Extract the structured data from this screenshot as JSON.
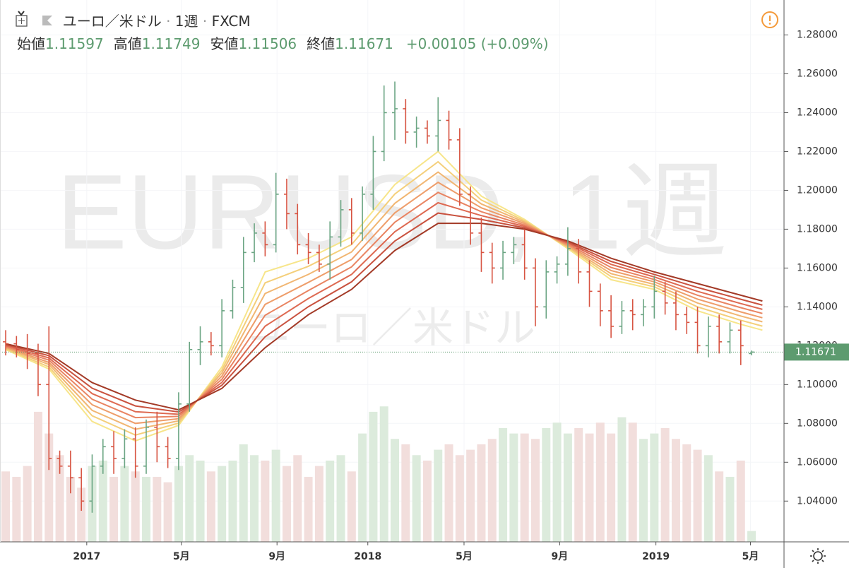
{
  "header": {
    "symbol": "ユーロ／米ドル",
    "interval": "1週",
    "source": "FXCM",
    "ohlc": [
      {
        "label": "始値",
        "value": "1.11597"
      },
      {
        "label": "高値",
        "value": "1.11749"
      },
      {
        "label": "安値",
        "value": "1.11506"
      },
      {
        "label": "終値",
        "value": "1.11671"
      }
    ],
    "change": "+0.00105 (+0.09%)"
  },
  "chart_data": {
    "type": "ohlc",
    "watermark": {
      "main": "EURUSD, 1週",
      "sub": "ユーロ／米ドル"
    },
    "up_color": "#6ba583",
    "down_color": "#d75442",
    "volume_up_color": "#dcebdc",
    "volume_down_color": "#f2dedc",
    "xlim": [
      -1.05,
      144
    ],
    "xticks": [
      {
        "value": 15,
        "label": "2017"
      },
      {
        "value": 32.5,
        "label": "5月"
      },
      {
        "value": 50.2,
        "label": "9月"
      },
      {
        "value": 67,
        "label": "2018"
      },
      {
        "value": 84.8,
        "label": "5月"
      },
      {
        "value": 102.5,
        "label": "9月"
      },
      {
        "value": 120.3,
        "label": "2019"
      },
      {
        "value": 137.8,
        "label": "5月"
      }
    ],
    "ylim": [
      1.019,
      1.298
    ],
    "yticks": [
      {
        "value": 1.04,
        "label": "1.04000"
      },
      {
        "value": 1.06,
        "label": "1.06000"
      },
      {
        "value": 1.08,
        "label": "1.08000"
      },
      {
        "value": 1.1,
        "label": "1.10000"
      },
      {
        "value": 1.12,
        "label": "1.12000"
      },
      {
        "value": 1.14,
        "label": "1.14000"
      },
      {
        "value": 1.16,
        "label": "1.16000"
      },
      {
        "value": 1.18,
        "label": "1.18000"
      },
      {
        "value": 1.2,
        "label": "1.20000"
      },
      {
        "value": 1.22,
        "label": "1.22000"
      },
      {
        "value": 1.24,
        "label": "1.24000"
      },
      {
        "value": 1.26,
        "label": "1.26000"
      },
      {
        "value": 1.28,
        "label": "1.28000"
      }
    ],
    "last_price": {
      "value": 1.11671,
      "label": "1.11671"
    },
    "vlim": [
      0,
      100
    ],
    "x": [
      0,
      2,
      4,
      6,
      8,
      10,
      12,
      14,
      16,
      18,
      20,
      22,
      24,
      26,
      28,
      30,
      32,
      34,
      36,
      38,
      40,
      42,
      44,
      46,
      48,
      50,
      52,
      54,
      56,
      58,
      60,
      62,
      64,
      66,
      68,
      70,
      72,
      74,
      76,
      78,
      80,
      82,
      84,
      86,
      88,
      90,
      92,
      94,
      96,
      98,
      100,
      102,
      104,
      106,
      108,
      110,
      112,
      114,
      116,
      118,
      120,
      122,
      124,
      126,
      128,
      130,
      132,
      134,
      136,
      138
    ],
    "open": [
      1.122,
      1.121,
      1.118,
      1.116,
      1.1,
      1.062,
      1.058,
      1.052,
      1.04,
      1.058,
      1.068,
      1.062,
      1.072,
      1.058,
      1.078,
      1.068,
      1.062,
      1.09,
      1.118,
      1.122,
      1.12,
      1.138,
      1.15,
      1.168,
      1.178,
      1.172,
      1.198,
      1.188,
      1.172,
      1.168,
      1.162,
      1.176,
      1.19,
      1.178,
      1.198,
      1.22,
      1.24,
      1.242,
      1.23,
      1.232,
      1.228,
      1.236,
      1.226,
      1.198,
      1.178,
      1.168,
      1.16,
      1.168,
      1.172,
      1.16,
      1.14,
      1.158,
      1.162,
      1.17,
      1.158,
      1.148,
      1.138,
      1.13,
      1.138,
      1.136,
      1.14,
      1.148,
      1.142,
      1.136,
      1.132,
      1.12,
      1.13,
      1.122,
      1.128,
      1.11597
    ],
    "high": [
      1.128,
      1.125,
      1.126,
      1.121,
      1.13,
      1.066,
      1.066,
      1.057,
      1.064,
      1.072,
      1.076,
      1.077,
      1.078,
      1.082,
      1.086,
      1.073,
      1.096,
      1.122,
      1.13,
      1.127,
      1.144,
      1.154,
      1.176,
      1.183,
      1.184,
      1.209,
      1.206,
      1.193,
      1.178,
      1.172,
      1.184,
      1.195,
      1.196,
      1.202,
      1.228,
      1.254,
      1.256,
      1.247,
      1.238,
      1.236,
      1.248,
      1.241,
      1.232,
      1.202,
      1.186,
      1.173,
      1.174,
      1.176,
      1.18,
      1.165,
      1.164,
      1.166,
      1.181,
      1.175,
      1.164,
      1.152,
      1.146,
      1.143,
      1.144,
      1.144,
      1.156,
      1.153,
      1.148,
      1.14,
      1.14,
      1.135,
      1.136,
      1.132,
      1.133,
      1.11749
    ],
    "low": [
      1.115,
      1.114,
      1.108,
      1.094,
      1.056,
      1.054,
      1.044,
      1.035,
      1.034,
      1.054,
      1.054,
      1.057,
      1.052,
      1.054,
      1.06,
      1.057,
      1.056,
      1.086,
      1.11,
      1.115,
      1.114,
      1.134,
      1.142,
      1.163,
      1.166,
      1.168,
      1.18,
      1.167,
      1.162,
      1.158,
      1.154,
      1.171,
      1.172,
      1.174,
      1.19,
      1.215,
      1.226,
      1.224,
      1.222,
      1.224,
      1.22,
      1.221,
      1.192,
      1.172,
      1.158,
      1.152,
      1.154,
      1.162,
      1.154,
      1.13,
      1.134,
      1.152,
      1.156,
      1.152,
      1.14,
      1.13,
      1.124,
      1.126,
      1.128,
      1.13,
      1.134,
      1.136,
      1.128,
      1.126,
      1.116,
      1.114,
      1.116,
      1.116,
      1.11,
      1.11506
    ],
    "close": [
      1.121,
      1.118,
      1.116,
      1.1,
      1.062,
      1.058,
      1.052,
      1.04,
      1.058,
      1.068,
      1.062,
      1.072,
      1.058,
      1.078,
      1.068,
      1.062,
      1.09,
      1.118,
      1.122,
      1.12,
      1.138,
      1.15,
      1.168,
      1.178,
      1.172,
      1.198,
      1.188,
      1.172,
      1.168,
      1.162,
      1.176,
      1.19,
      1.178,
      1.198,
      1.22,
      1.24,
      1.242,
      1.23,
      1.232,
      1.228,
      1.236,
      1.226,
      1.198,
      1.178,
      1.168,
      1.16,
      1.168,
      1.172,
      1.16,
      1.14,
      1.158,
      1.162,
      1.17,
      1.158,
      1.148,
      1.138,
      1.13,
      1.138,
      1.136,
      1.14,
      1.148,
      1.142,
      1.136,
      1.132,
      1.12,
      1.13,
      1.122,
      1.128,
      1.12,
      1.11671
    ],
    "volume": [
      13,
      12,
      14,
      24,
      20,
      16,
      12,
      10,
      14,
      15,
      12,
      14,
      13,
      12,
      12,
      11,
      14,
      16,
      15,
      13,
      14,
      15,
      18,
      16,
      15,
      17,
      14,
      16,
      12,
      14,
      15,
      16,
      13,
      20,
      24,
      25,
      19,
      18,
      16,
      15,
      17,
      18,
      16,
      17,
      18,
      19,
      21,
      20,
      20,
      19,
      21,
      22,
      20,
      21,
      20,
      22,
      20,
      23,
      22,
      19,
      20,
      21,
      19,
      18,
      17,
      16,
      13,
      12,
      15,
      2
    ],
    "ma_x": [
      0,
      8,
      16,
      24,
      32,
      40,
      48,
      56,
      64,
      72,
      80,
      88,
      96,
      104,
      112,
      120,
      128,
      136,
      140
    ],
    "moving_averages": [
      {
        "color": "#f7e58a",
        "values": [
          1.118,
          1.108,
          1.081,
          1.071,
          1.079,
          1.109,
          1.158,
          1.165,
          1.176,
          1.203,
          1.22,
          1.197,
          1.185,
          1.17,
          1.154,
          1.149,
          1.138,
          1.131,
          1.128
        ]
      },
      {
        "color": "#f4cf7a",
        "values": [
          1.1184,
          1.1091,
          1.0839,
          1.074,
          1.0801,
          1.1074,
          1.1524,
          1.1609,
          1.1721,
          1.1981,
          1.2147,
          1.195,
          1.1843,
          1.1706,
          1.1556,
          1.1503,
          1.14,
          1.1331,
          1.1301
        ]
      },
      {
        "color": "#f1b672",
        "values": [
          1.1189,
          1.1103,
          1.0867,
          1.077,
          1.0813,
          1.1059,
          1.1469,
          1.1567,
          1.1683,
          1.1933,
          1.2094,
          1.193,
          1.1836,
          1.1711,
          1.1571,
          1.1516,
          1.142,
          1.1353,
          1.1323
        ]
      },
      {
        "color": "#ee9d6a",
        "values": [
          1.1193,
          1.1114,
          1.0896,
          1.08,
          1.0824,
          1.1043,
          1.1413,
          1.1526,
          1.1644,
          1.1884,
          1.2041,
          1.191,
          1.1829,
          1.1717,
          1.1587,
          1.1529,
          1.144,
          1.1374,
          1.1344
        ]
      },
      {
        "color": "#e98462",
        "values": [
          1.1197,
          1.1126,
          1.0924,
          1.083,
          1.0836,
          1.1027,
          1.1357,
          1.1484,
          1.1606,
          1.1836,
          1.1989,
          1.189,
          1.1821,
          1.1723,
          1.1603,
          1.1541,
          1.146,
          1.1396,
          1.1366
        ]
      },
      {
        "color": "#de6a52",
        "values": [
          1.1201,
          1.1137,
          1.0953,
          1.086,
          1.0847,
          1.1011,
          1.1301,
          1.1443,
          1.1567,
          1.1787,
          1.1936,
          1.187,
          1.1814,
          1.1729,
          1.1619,
          1.1554,
          1.148,
          1.1417,
          1.1387
        ]
      },
      {
        "color": "#c9523f",
        "values": [
          1.1206,
          1.1149,
          1.0981,
          1.089,
          1.0859,
          1.0996,
          1.1246,
          1.1401,
          1.1529,
          1.1739,
          1.1883,
          1.185,
          1.1807,
          1.1734,
          1.1634,
          1.1567,
          1.15,
          1.1439,
          1.1409
        ]
      },
      {
        "color": "#a33a27",
        "values": [
          1.121,
          1.116,
          1.101,
          1.092,
          1.087,
          1.098,
          1.119,
          1.136,
          1.149,
          1.169,
          1.183,
          1.183,
          1.18,
          1.174,
          1.165,
          1.158,
          1.152,
          1.146,
          1.143
        ]
      }
    ]
  }
}
